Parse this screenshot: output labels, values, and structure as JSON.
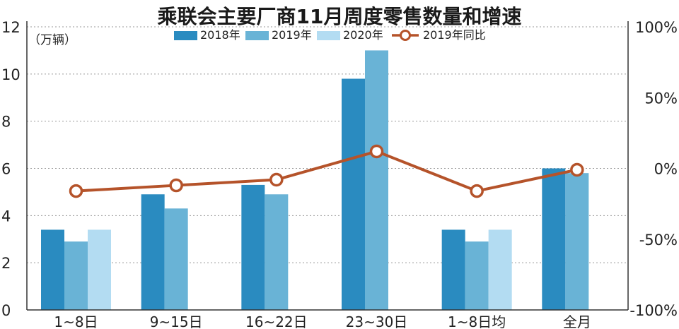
{
  "chart_data": {
    "type": "bar",
    "title": "乘联会主要厂商11月周度零售数量和增速",
    "y_unit_label": "（万辆）",
    "categories": [
      "1~8日",
      "9~15日",
      "16~22日",
      "23~30日",
      "1~8日均",
      "全月"
    ],
    "ylim": [
      0,
      12
    ],
    "yticks": [
      0,
      2,
      4,
      6,
      8,
      10,
      12
    ],
    "y2lim": [
      -100,
      100
    ],
    "y2ticks": [
      "-100%",
      "-50%",
      "0%",
      "50%",
      "100%"
    ],
    "y2tick_values": [
      -100,
      -50,
      0,
      50,
      100
    ],
    "grid": true,
    "legend_position": "top",
    "series": [
      {
        "name": "2018年",
        "kind": "bar",
        "color": "#2a8bc0",
        "values": [
          3.4,
          4.9,
          5.3,
          9.8,
          3.4,
          6.0
        ]
      },
      {
        "name": "2019年",
        "kind": "bar",
        "color": "#69b3d6",
        "values": [
          2.9,
          4.3,
          4.9,
          11.0,
          2.9,
          5.8
        ]
      },
      {
        "name": "2020年",
        "kind": "bar",
        "color": "#b3dcf2",
        "values": [
          3.4,
          null,
          null,
          null,
          3.4,
          null
        ]
      },
      {
        "name": "2019年同比",
        "kind": "line",
        "axis": "right",
        "color": "#b5532a",
        "values": [
          -16,
          -12,
          -8,
          12,
          -16,
          -1
        ]
      }
    ]
  }
}
